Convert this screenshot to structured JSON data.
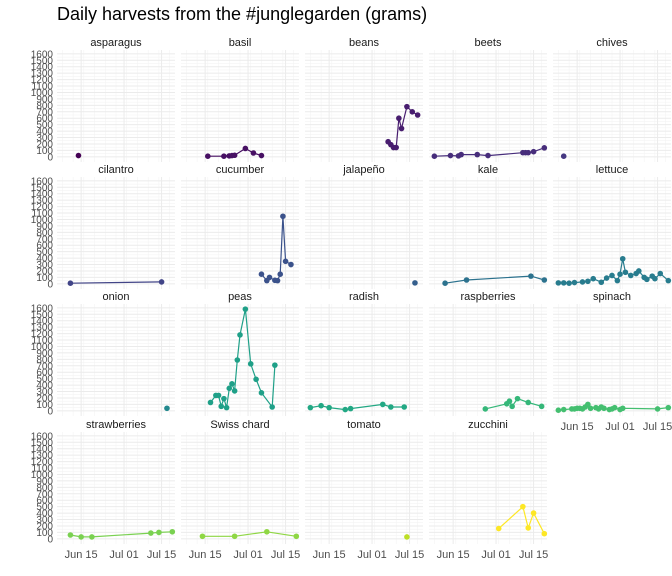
{
  "chart_data": {
    "type": "line",
    "title": "Daily harvests from the #junglegarden (grams)",
    "xlabel": "",
    "ylabel": "",
    "x_range": [
      "2020-06-06",
      "2020-07-20"
    ],
    "y_range": [
      -80,
      1660
    ],
    "y_ticks": [
      0,
      100,
      200,
      300,
      400,
      500,
      600,
      700,
      800,
      900,
      1000,
      1100,
      1200,
      1300,
      1400,
      1500,
      1600
    ],
    "x_ticks": [
      {
        "date": "2020-06-15",
        "label": "Jun 15"
      },
      {
        "date": "2020-07-01",
        "label": "Jul 01"
      },
      {
        "date": "2020-07-15",
        "label": "Jul 15"
      }
    ],
    "grid": true,
    "legend": "none",
    "panels": [
      {
        "name": "asparagus",
        "color": "#440154",
        "points": [
          [
            "2020-06-14",
            20
          ]
        ]
      },
      {
        "name": "basil",
        "color": "#471063",
        "points": [
          [
            "2020-06-16",
            10
          ],
          [
            "2020-06-22",
            10
          ],
          [
            "2020-06-24",
            15
          ],
          [
            "2020-06-25",
            20
          ],
          [
            "2020-06-26",
            25
          ],
          [
            "2020-06-30",
            130
          ],
          [
            "2020-07-03",
            60
          ],
          [
            "2020-07-06",
            20
          ]
        ]
      },
      {
        "name": "beans",
        "color": "#481d6f",
        "points": [
          [
            "2020-07-07",
            235
          ],
          [
            "2020-07-08",
            190
          ],
          [
            "2020-07-09",
            145
          ],
          [
            "2020-07-10",
            145
          ],
          [
            "2020-07-11",
            600
          ],
          [
            "2020-07-12",
            440
          ],
          [
            "2020-07-14",
            780
          ],
          [
            "2020-07-16",
            700
          ],
          [
            "2020-07-18",
            650
          ]
        ]
      },
      {
        "name": "beets",
        "color": "#472d7b",
        "points": [
          [
            "2020-06-08",
            10
          ],
          [
            "2020-06-14",
            20
          ],
          [
            "2020-06-17",
            15
          ],
          [
            "2020-06-18",
            35
          ],
          [
            "2020-06-24",
            35
          ],
          [
            "2020-06-28",
            20
          ],
          [
            "2020-07-11",
            65
          ],
          [
            "2020-07-12",
            65
          ],
          [
            "2020-07-13",
            65
          ],
          [
            "2020-07-15",
            80
          ],
          [
            "2020-07-19",
            140
          ]
        ]
      },
      {
        "name": "chives",
        "color": "#453781",
        "points": [
          [
            "2020-06-10",
            10
          ]
        ]
      },
      {
        "name": "cilantro",
        "color": "#414487",
        "points": [
          [
            "2020-06-11",
            10
          ],
          [
            "2020-07-15",
            30
          ]
        ]
      },
      {
        "name": "cucumber",
        "color": "#3b528b",
        "points": [
          [
            "2020-07-06",
            150
          ],
          [
            "2020-07-08",
            50
          ],
          [
            "2020-07-09",
            100
          ],
          [
            "2020-07-11",
            55
          ],
          [
            "2020-07-12",
            50
          ],
          [
            "2020-07-13",
            150
          ],
          [
            "2020-07-14",
            1050
          ],
          [
            "2020-07-15",
            350
          ],
          [
            "2020-07-17",
            300
          ]
        ]
      },
      {
        "name": "jalapeño",
        "color": "#355f8d",
        "points": [
          [
            "2020-07-17",
            15
          ]
        ]
      },
      {
        "name": "kale",
        "color": "#2c728e",
        "points": [
          [
            "2020-06-12",
            10
          ],
          [
            "2020-06-20",
            60
          ],
          [
            "2020-07-14",
            120
          ],
          [
            "2020-07-19",
            60
          ]
        ]
      },
      {
        "name": "lettuce",
        "color": "#287c8e",
        "points": [
          [
            "2020-06-08",
            15
          ],
          [
            "2020-06-10",
            15
          ],
          [
            "2020-06-12",
            10
          ],
          [
            "2020-06-14",
            20
          ],
          [
            "2020-06-17",
            30
          ],
          [
            "2020-06-19",
            40
          ],
          [
            "2020-06-21",
            80
          ],
          [
            "2020-06-24",
            25
          ],
          [
            "2020-06-26",
            90
          ],
          [
            "2020-06-28",
            130
          ],
          [
            "2020-06-30",
            50
          ],
          [
            "2020-07-01",
            150
          ],
          [
            "2020-07-02",
            390
          ],
          [
            "2020-07-03",
            180
          ],
          [
            "2020-07-05",
            130
          ],
          [
            "2020-07-07",
            160
          ],
          [
            "2020-07-08",
            200
          ],
          [
            "2020-07-10",
            100
          ],
          [
            "2020-07-11",
            70
          ],
          [
            "2020-07-13",
            120
          ],
          [
            "2020-07-14",
            80
          ],
          [
            "2020-07-16",
            160
          ],
          [
            "2020-07-19",
            50
          ]
        ]
      },
      {
        "name": "onion",
        "color": "#23898e",
        "points": [
          [
            "2020-07-17",
            40
          ]
        ]
      },
      {
        "name": "peas",
        "color": "#1fa088",
        "points": [
          [
            "2020-06-17",
            130
          ],
          [
            "2020-06-19",
            240
          ],
          [
            "2020-06-20",
            240
          ],
          [
            "2020-06-21",
            70
          ],
          [
            "2020-06-22",
            190
          ],
          [
            "2020-06-23",
            50
          ],
          [
            "2020-06-24",
            350
          ],
          [
            "2020-06-25",
            420
          ],
          [
            "2020-06-26",
            310
          ],
          [
            "2020-06-27",
            790
          ],
          [
            "2020-06-28",
            1180
          ],
          [
            "2020-06-30",
            1580
          ],
          [
            "2020-07-02",
            730
          ],
          [
            "2020-07-04",
            490
          ],
          [
            "2020-07-06",
            280
          ],
          [
            "2020-07-10",
            60
          ],
          [
            "2020-07-11",
            710
          ]
        ]
      },
      {
        "name": "radish",
        "color": "#22a884",
        "points": [
          [
            "2020-06-08",
            50
          ],
          [
            "2020-06-12",
            80
          ],
          [
            "2020-06-15",
            50
          ],
          [
            "2020-06-21",
            20
          ],
          [
            "2020-06-23",
            35
          ],
          [
            "2020-07-05",
            100
          ],
          [
            "2020-07-08",
            60
          ],
          [
            "2020-07-13",
            60
          ]
        ]
      },
      {
        "name": "raspberries",
        "color": "#35b779",
        "points": [
          [
            "2020-06-27",
            30
          ],
          [
            "2020-07-05",
            110
          ],
          [
            "2020-07-06",
            150
          ],
          [
            "2020-07-07",
            70
          ],
          [
            "2020-07-09",
            190
          ],
          [
            "2020-07-13",
            130
          ],
          [
            "2020-07-18",
            70
          ]
        ]
      },
      {
        "name": "spinach",
        "color": "#44bf70",
        "points": [
          [
            "2020-06-08",
            10
          ],
          [
            "2020-06-10",
            20
          ],
          [
            "2020-06-13",
            30
          ],
          [
            "2020-06-14",
            30
          ],
          [
            "2020-06-15",
            40
          ],
          [
            "2020-06-16",
            40
          ],
          [
            "2020-06-17",
            30
          ],
          [
            "2020-06-18",
            60
          ],
          [
            "2020-06-19",
            100
          ],
          [
            "2020-06-20",
            40
          ],
          [
            "2020-06-22",
            50
          ],
          [
            "2020-06-23",
            30
          ],
          [
            "2020-06-24",
            60
          ],
          [
            "2020-06-25",
            40
          ],
          [
            "2020-06-27",
            20
          ],
          [
            "2020-06-28",
            30
          ],
          [
            "2020-06-29",
            50
          ],
          [
            "2020-07-01",
            20
          ],
          [
            "2020-07-02",
            40
          ],
          [
            "2020-07-15",
            30
          ],
          [
            "2020-07-19",
            50
          ]
        ]
      },
      {
        "name": "strawberries",
        "color": "#7ad151",
        "points": [
          [
            "2020-06-11",
            60
          ],
          [
            "2020-06-15",
            30
          ],
          [
            "2020-06-19",
            30
          ],
          [
            "2020-07-11",
            90
          ],
          [
            "2020-07-14",
            100
          ],
          [
            "2020-07-19",
            110
          ]
        ]
      },
      {
        "name": "Swiss chard",
        "color": "#8fd744",
        "points": [
          [
            "2020-06-14",
            40
          ],
          [
            "2020-06-26",
            40
          ],
          [
            "2020-07-08",
            110
          ],
          [
            "2020-07-19",
            40
          ]
        ]
      },
      {
        "name": "tomato",
        "color": "#bddf26",
        "points": [
          [
            "2020-07-14",
            30
          ]
        ]
      },
      {
        "name": "zucchini",
        "color": "#fde725",
        "points": [
          [
            "2020-07-02",
            160
          ],
          [
            "2020-07-11",
            500
          ],
          [
            "2020-07-13",
            170
          ],
          [
            "2020-07-15",
            400
          ],
          [
            "2020-07-19",
            80
          ]
        ]
      }
    ]
  }
}
